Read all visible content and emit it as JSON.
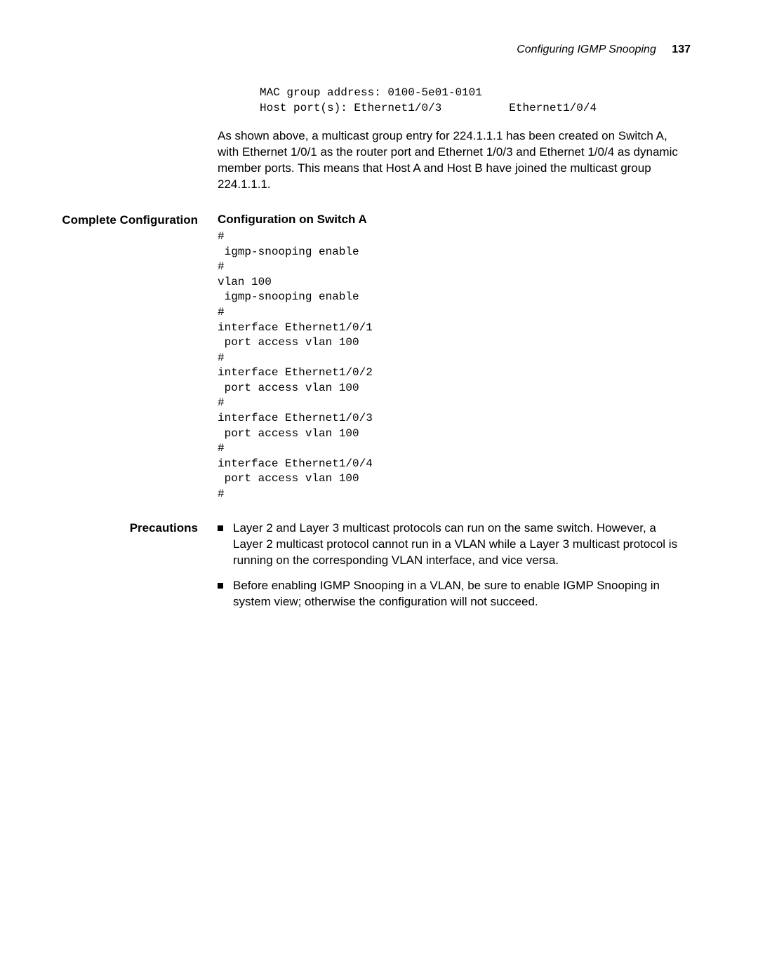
{
  "header": {
    "title": "Configuring IGMP Snooping",
    "page_number": "137"
  },
  "top_code": {
    "lines": [
      "MAC group address: 0100-5e01-0101",
      "Host port(s): Ethernet1/0/3          Ethernet1/0/4"
    ]
  },
  "intro_paragraph": "As shown above, a multicast group entry for 224.1.1.1 has been created on Switch A, with Ethernet 1/0/1 as the router port and Ethernet 1/0/3 and Ethernet 1/0/4 as dynamic member ports. This means that Host A and Host B have joined the multicast group 224.1.1.1.",
  "complete_config": {
    "label": "Complete Configuration",
    "heading": "Configuration on Switch A",
    "lines": [
      "#",
      " igmp-snooping enable",
      "#",
      "vlan 100",
      " igmp-snooping enable",
      "#",
      "interface Ethernet1/0/1",
      " port access vlan 100",
      "#",
      "interface Ethernet1/0/2",
      " port access vlan 100",
      "#",
      "interface Ethernet1/0/3",
      " port access vlan 100",
      "#",
      "interface Ethernet1/0/4",
      " port access vlan 100",
      "#"
    ]
  },
  "precautions": {
    "label": "Precautions",
    "items": [
      "Layer 2 and Layer 3 multicast protocols can run on the same switch. However, a Layer 2 multicast protocol cannot run in a VLAN while a Layer 3 multicast protocol is running on the corresponding VLAN interface, and vice versa.",
      "Before enabling IGMP Snooping in a VLAN, be sure to enable IGMP Snooping in system view; otherwise the configuration will not succeed."
    ]
  }
}
